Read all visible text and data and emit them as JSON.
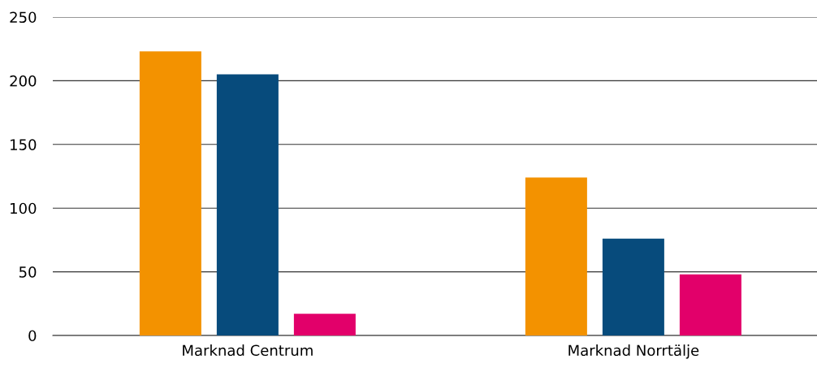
{
  "chart_data": {
    "type": "bar",
    "categories": [
      "Marknad Centrum",
      "Marknad Norrtälje"
    ],
    "series": [
      {
        "color": "#f39200",
        "values": [
          223,
          124
        ]
      },
      {
        "color": "#074b7c",
        "values": [
          205,
          76
        ]
      },
      {
        "color": "#e2006a",
        "values": [
          17,
          48
        ]
      }
    ],
    "ylim": [
      0,
      250
    ],
    "yticks": [
      0,
      50,
      100,
      150,
      200,
      250
    ],
    "grid": "y"
  }
}
